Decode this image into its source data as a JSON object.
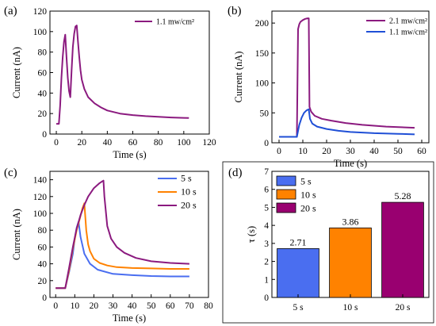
{
  "chart_data": [
    {
      "panel": "(a)",
      "type": "line",
      "xlabel": "Time (s)",
      "ylabel": "Current (nA)",
      "xlim": [
        -5,
        120
      ],
      "ylim": [
        0,
        120
      ],
      "xticks": [
        0,
        20,
        40,
        60,
        80,
        100,
        120
      ],
      "yticks": [
        0,
        20,
        40,
        60,
        80,
        100,
        120
      ],
      "legend_position": "top-right",
      "series": [
        {
          "name": "1.1 mw/cm²",
          "color": "#8b1a7f",
          "x": [
            0,
            2,
            3,
            4,
            5,
            6,
            7,
            8,
            9,
            10,
            11,
            12,
            13,
            14,
            15,
            16,
            17,
            18,
            19,
            20,
            22,
            25,
            30,
            35,
            40,
            50,
            60,
            70,
            80,
            90,
            100,
            104
          ],
          "y": [
            10,
            10,
            28,
            55,
            75,
            90,
            97,
            75,
            55,
            42,
            36,
            62,
            85,
            98,
            105,
            106,
            90,
            75,
            62,
            53,
            44,
            36,
            30,
            26,
            23,
            20,
            18.5,
            17.5,
            16.8,
            16.2,
            15.8,
            15.6
          ]
        }
      ]
    },
    {
      "panel": "(b)",
      "type": "line",
      "xlabel": "Time (s)",
      "ylabel": "Current (nA)",
      "xlim": [
        -3,
        63
      ],
      "ylim": [
        0,
        220
      ],
      "xticks": [
        0,
        10,
        20,
        30,
        40,
        50,
        60
      ],
      "yticks": [
        0,
        50,
        100,
        150,
        200
      ],
      "legend_position": "top-right",
      "series": [
        {
          "name": "2.1 mw/cm²",
          "color": "#8b1a7f",
          "x": [
            0,
            7.5,
            8,
            8.5,
            9,
            10,
            11,
            12,
            12.5,
            12.8,
            13.5,
            15,
            18,
            22,
            28,
            35,
            45,
            57
          ],
          "y": [
            10,
            10,
            190,
            198,
            202,
            205,
            207,
            208,
            208,
            60,
            52,
            45,
            40,
            37,
            33,
            30,
            27,
            25
          ]
        },
        {
          "name": "1.1 mw/cm²",
          "color": "#1f4fd6",
          "x": [
            0,
            7.5,
            8.5,
            9.5,
            10.5,
            11.5,
            12.5,
            13,
            14,
            16,
            20,
            25,
            30,
            40,
            50,
            57
          ],
          "y": [
            10,
            10,
            30,
            42,
            50,
            54,
            56,
            40,
            32,
            27,
            23,
            20,
            18,
            16,
            15,
            14
          ]
        }
      ]
    },
    {
      "panel": "(c)",
      "type": "line",
      "xlabel": "Time (s)",
      "ylabel": "Current (nA)",
      "xlim": [
        -3,
        80
      ],
      "ylim": [
        0,
        150
      ],
      "xticks": [
        0,
        10,
        20,
        30,
        40,
        50,
        60,
        70,
        80
      ],
      "yticks": [
        0,
        20,
        40,
        60,
        80,
        100,
        120,
        140
      ],
      "legend_position": "top-right",
      "series": [
        {
          "name": "5 s",
          "color": "#4a6ef0",
          "x": [
            0,
            5,
            7,
            9,
            10,
            11,
            12,
            13,
            15,
            18,
            22,
            30,
            40,
            50,
            60,
            70
          ],
          "y": [
            11,
            11,
            30,
            52,
            70,
            83,
            90,
            72,
            52,
            40,
            33,
            28,
            26.5,
            25.5,
            25,
            25
          ]
        },
        {
          "name": "10 s",
          "color": "#ff8200",
          "x": [
            0,
            5,
            7,
            9,
            11,
            13,
            14,
            15,
            16,
            17,
            18,
            20,
            23,
            27,
            32,
            40,
            50,
            60,
            70
          ],
          "y": [
            11,
            11,
            32,
            58,
            80,
            97,
            106,
            112,
            80,
            63,
            55,
            46,
            41,
            38,
            36,
            35,
            34.5,
            34,
            34
          ]
        },
        {
          "name": "20 s",
          "color": "#8b1a7f",
          "x": [
            0,
            5,
            7,
            9,
            11,
            13,
            15,
            17,
            20,
            23,
            25,
            25.5,
            27,
            29,
            32,
            36,
            42,
            50,
            60,
            70
          ],
          "y": [
            11,
            11,
            35,
            60,
            82,
            98,
            110,
            120,
            130,
            136,
            139,
            120,
            85,
            70,
            60,
            53,
            47,
            43,
            41,
            40
          ]
        }
      ]
    },
    {
      "panel": "(d)",
      "type": "bar",
      "xlabel": "",
      "ylabel": "τ (s)",
      "categories": [
        "5 s",
        "10 s",
        "20 s"
      ],
      "values": [
        2.71,
        3.86,
        5.28
      ],
      "value_labels": [
        "2.71",
        "3.86",
        "5.28"
      ],
      "colors": [
        "#4a6ef0",
        "#ff8200",
        "#990070"
      ],
      "ylim": [
        0,
        7
      ],
      "yticks": [
        0,
        1,
        2,
        3,
        4,
        5,
        6,
        7
      ],
      "legend_position": "top-left",
      "legend": [
        "5 s",
        "10 s",
        "20 s"
      ]
    }
  ]
}
